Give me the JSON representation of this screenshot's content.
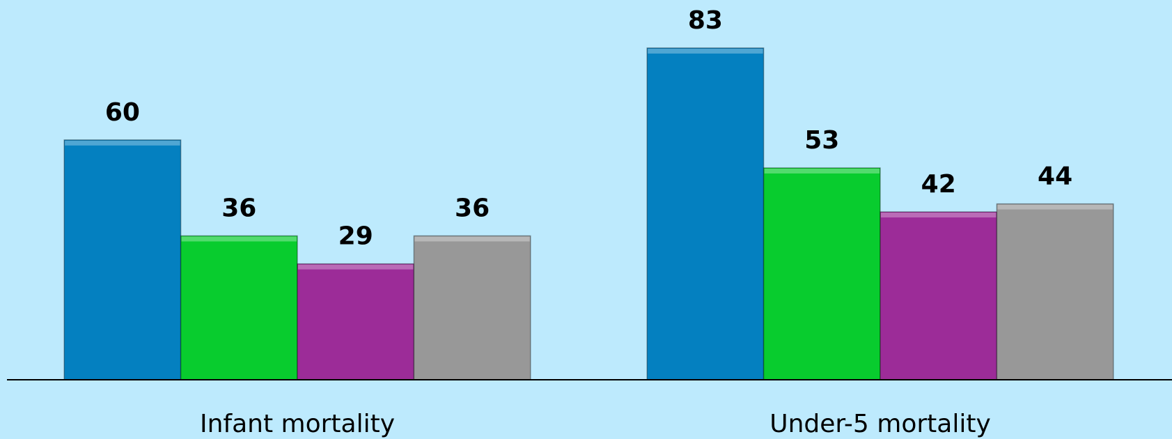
{
  "chart_data": {
    "type": "bar",
    "categories": [
      "Infant mortality",
      "Under-5 mortality"
    ],
    "series": [
      {
        "color": "#0480c0",
        "values": [
          60,
          83
        ]
      },
      {
        "color": "#08cc2e",
        "values": [
          36,
          53
        ]
      },
      {
        "color": "#9c2c98",
        "values": [
          29,
          42
        ]
      },
      {
        "color": "#989898",
        "values": [
          36,
          44
        ]
      }
    ],
    "ylim": [
      0,
      95
    ]
  }
}
